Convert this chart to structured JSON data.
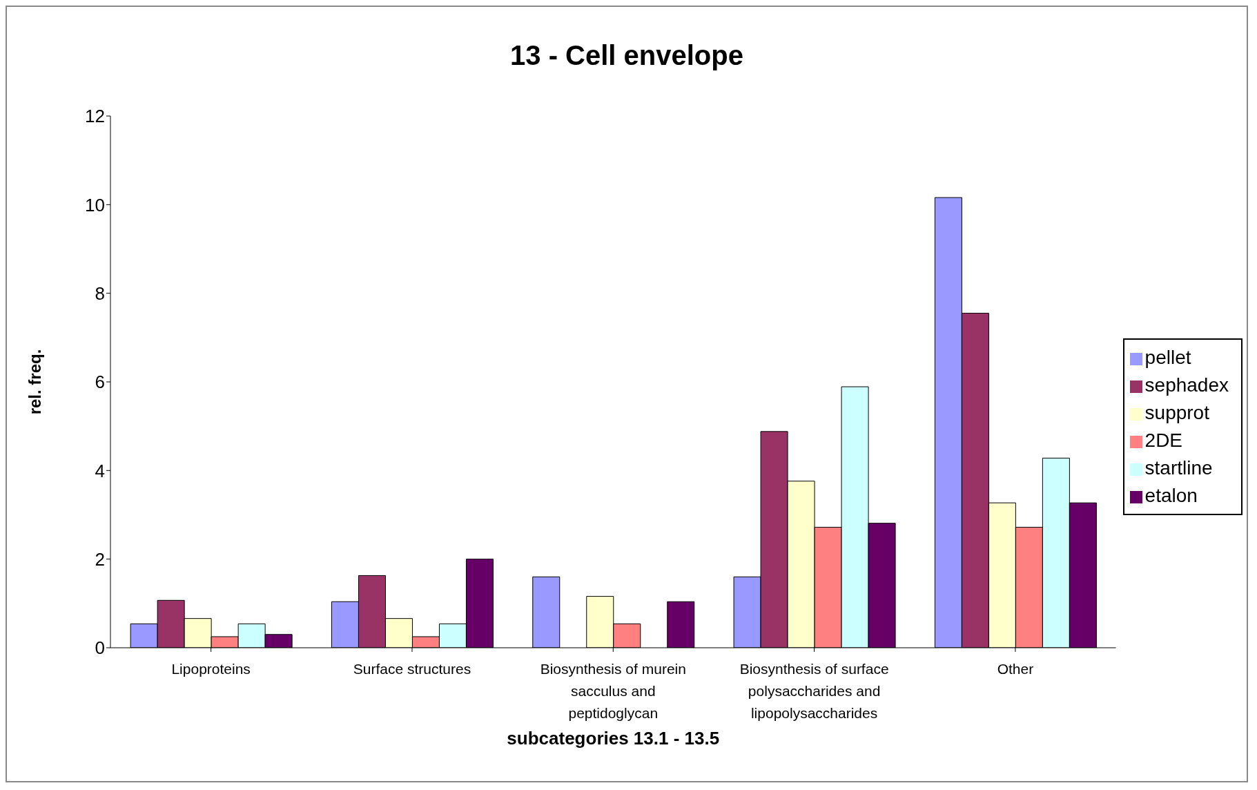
{
  "chart_data": {
    "type": "bar",
    "title": "13 - Cell envelope",
    "xlabel": "subcategories 13.1 -  13.5",
    "ylabel": "rel. freq.",
    "categories": [
      "Lipoproteins",
      "Surface structures",
      "Biosynthesis of murein sacculus and peptidoglycan",
      "Biosynthesis of surface polysaccharides and lipopolysaccharides",
      "Other"
    ],
    "series": [
      {
        "name": "pellet",
        "color": "#9999ff",
        "values": [
          0.54,
          1.04,
          1.6,
          1.6,
          10.16
        ]
      },
      {
        "name": "sephadex",
        "color": "#993366",
        "values": [
          1.07,
          1.63,
          0,
          4.88,
          7.55
        ]
      },
      {
        "name": "supprot",
        "color": "#ffffcc",
        "values": [
          0.66,
          0.66,
          1.16,
          3.76,
          3.27
        ]
      },
      {
        "name": "2DE",
        "color": "#ff8080",
        "values": [
          0.25,
          0.25,
          0.54,
          2.72,
          2.72
        ]
      },
      {
        "name": "startline",
        "color": "#ccffff",
        "values": [
          0.54,
          0.54,
          0,
          5.89,
          4.28
        ]
      },
      {
        "name": "etalon",
        "color": "#660066",
        "values": [
          0.3,
          2.0,
          1.04,
          2.81,
          3.27
        ]
      }
    ],
    "ylim": [
      0,
      12
    ],
    "yticks": [
      0,
      2,
      4,
      6,
      8,
      10,
      12
    ],
    "grid": false,
    "legend": "right"
  }
}
